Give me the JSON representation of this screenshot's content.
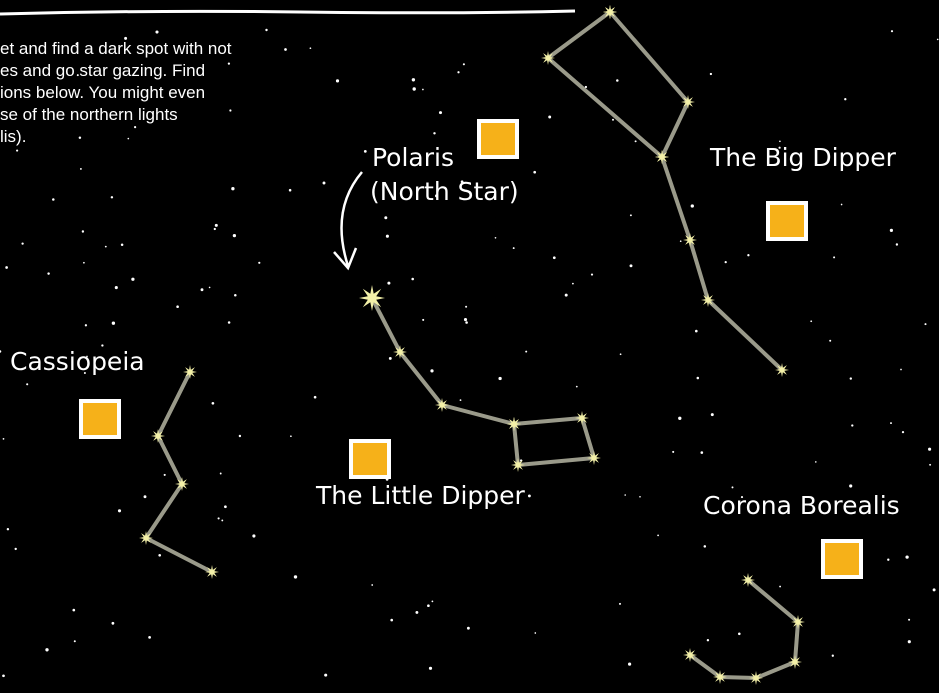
{
  "intro": {
    "lines": [
      "et and find a dark spot with not",
      "es and go star gazing. Find",
      "ions below. You might even",
      "se of the northern lights",
      "lis)."
    ]
  },
  "labels": {
    "polaris": "Polaris",
    "north_star": "(North Star)",
    "big_dipper": "The Big Dipper",
    "cassiopeia": "Cassiopeia",
    "little_dipper": "The Little Dipper",
    "corona_borealis": "Corona Borealis"
  }
}
